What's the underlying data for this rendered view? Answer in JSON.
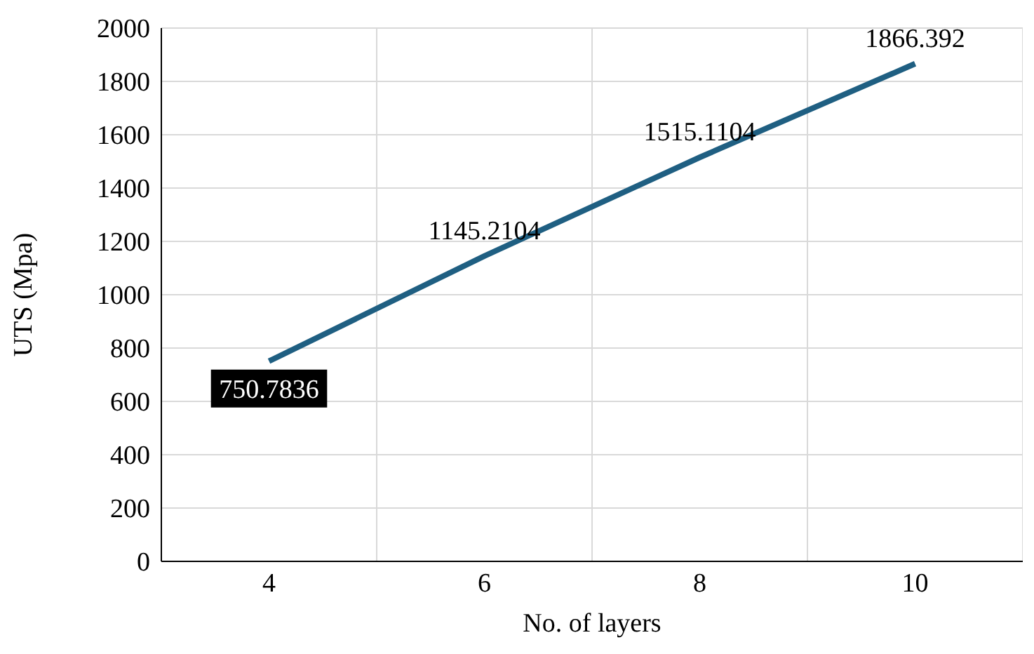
{
  "chart_data": {
    "type": "line",
    "xlabel": "No. of layers",
    "ylabel": "UTS (Mpa)",
    "categories": [
      "4",
      "6",
      "8",
      "10"
    ],
    "series": [
      {
        "color": "#1f5f82",
        "values": [
          750.7836,
          1145.2104,
          1515.1104,
          1866.392
        ]
      }
    ],
    "ylim": [
      0,
      2000
    ],
    "yticks": [
      0,
      200,
      400,
      600,
      800,
      1000,
      1200,
      1400,
      1600,
      1800,
      2000
    ],
    "grid": true,
    "marker": "none",
    "line_style": "solid",
    "data_labels": true,
    "legend": false
  }
}
